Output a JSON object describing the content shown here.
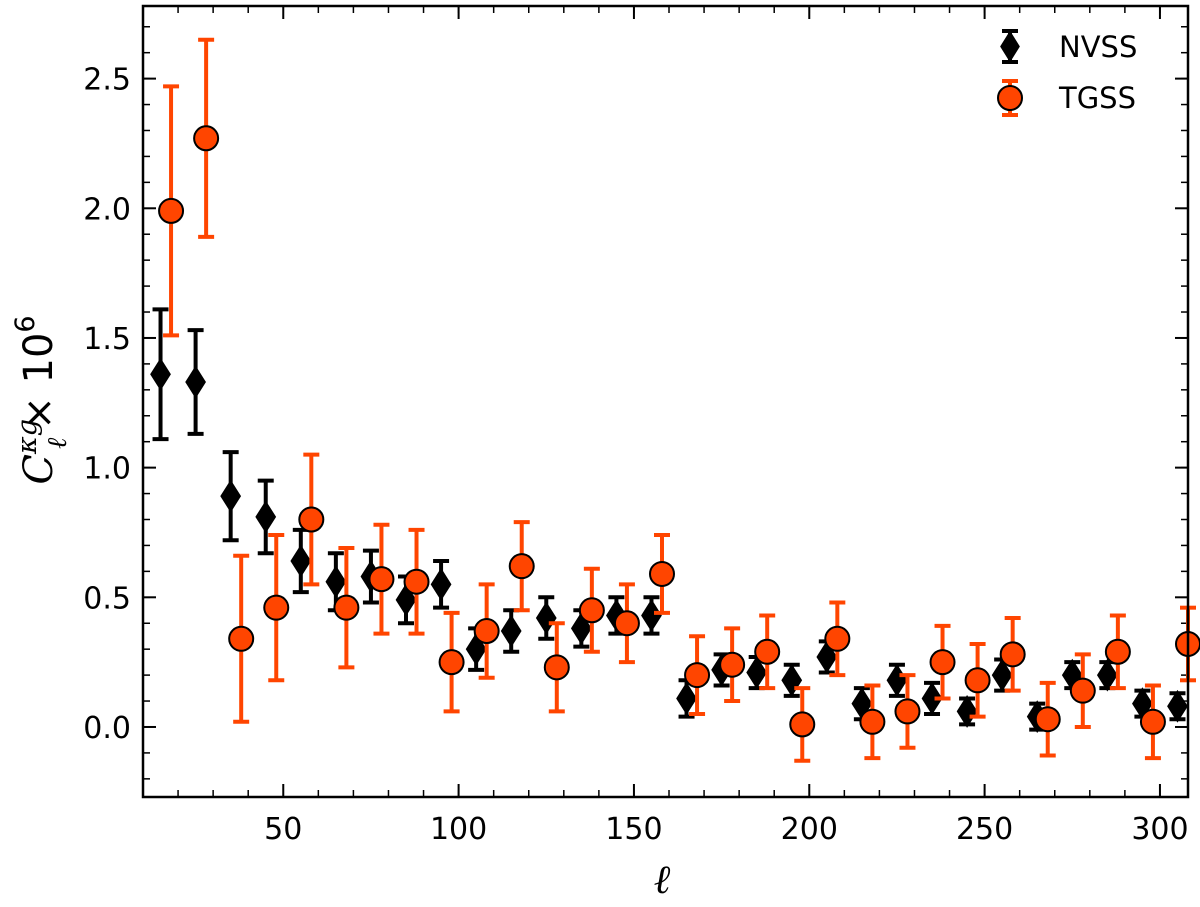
{
  "chart_data": {
    "type": "scatter",
    "xlabel": "ℓ",
    "ylabel": {
      "base": "C",
      "sub": "ℓ",
      "sup": "κg",
      "suffix": "× 10",
      "exp": "6"
    },
    "xlim": [
      10,
      308
    ],
    "ylim": [
      -0.27,
      2.78
    ],
    "xticks": [
      50,
      100,
      150,
      200,
      250,
      300
    ],
    "xtick_labels": [
      "50",
      "100",
      "150",
      "200",
      "250",
      "300"
    ],
    "yticks": [
      0.0,
      0.5,
      1.0,
      1.5,
      2.0,
      2.5
    ],
    "ytick_labels": [
      "0.0",
      "0.5",
      "1.0",
      "1.5",
      "2.0",
      "2.5"
    ],
    "grid": false,
    "legend_position": "top-right",
    "series": [
      {
        "name": "NVSS",
        "marker": "diamond",
        "color": "#000000",
        "x": [
          15,
          25,
          35,
          45,
          55,
          65,
          75,
          85,
          95,
          105,
          115,
          125,
          135,
          145,
          155,
          165,
          175,
          185,
          195,
          205,
          215,
          225,
          235,
          245,
          255,
          265,
          275,
          285,
          295,
          305
        ],
        "y": [
          1.36,
          1.33,
          0.89,
          0.81,
          0.64,
          0.56,
          0.58,
          0.49,
          0.55,
          0.3,
          0.37,
          0.42,
          0.38,
          0.43,
          0.43,
          0.11,
          0.22,
          0.21,
          0.18,
          0.27,
          0.09,
          0.18,
          0.11,
          0.06,
          0.2,
          0.04,
          0.2,
          0.2,
          0.09,
          0.08
        ],
        "yerr": [
          0.25,
          0.2,
          0.17,
          0.14,
          0.12,
          0.11,
          0.1,
          0.09,
          0.09,
          0.08,
          0.08,
          0.08,
          0.07,
          0.07,
          0.07,
          0.07,
          0.06,
          0.06,
          0.06,
          0.06,
          0.06,
          0.06,
          0.06,
          0.05,
          0.06,
          0.05,
          0.05,
          0.05,
          0.05,
          0.05
        ]
      },
      {
        "name": "TGSS",
        "marker": "circle",
        "color": "#ff4500",
        "x": [
          18,
          28,
          38,
          48,
          58,
          68,
          78,
          88,
          98,
          108,
          118,
          128,
          138,
          148,
          158,
          168,
          178,
          188,
          198,
          208,
          218,
          228,
          238,
          248,
          258,
          268,
          278,
          288,
          298,
          308
        ],
        "y": [
          1.99,
          2.27,
          0.34,
          0.46,
          0.8,
          0.46,
          0.57,
          0.56,
          0.25,
          0.37,
          0.62,
          0.23,
          0.45,
          0.4,
          0.59,
          0.2,
          0.24,
          0.29,
          0.01,
          0.34,
          0.02,
          0.06,
          0.25,
          0.18,
          0.28,
          0.03,
          0.14,
          0.29,
          0.02,
          0.32
        ]
      }
    ],
    "tgss_err_low": [
      0.48,
      0.38,
      0.32,
      0.28,
      0.25,
      0.23,
      0.21,
      0.2,
      0.19,
      0.18,
      0.17,
      0.17,
      0.16,
      0.15,
      0.15,
      0.15,
      0.14,
      0.14,
      0.14,
      0.14,
      0.14,
      0.14,
      0.14,
      0.14,
      0.14,
      0.14,
      0.14,
      0.14,
      0.14,
      0.14
    ],
    "tgss_err_high": [
      0.48,
      0.38,
      0.32,
      0.28,
      0.25,
      0.23,
      0.21,
      0.2,
      0.19,
      0.18,
      0.17,
      0.17,
      0.16,
      0.15,
      0.15,
      0.15,
      0.14,
      0.14,
      0.14,
      0.14,
      0.14,
      0.14,
      0.14,
      0.14,
      0.14,
      0.14,
      0.14,
      0.14,
      0.14,
      0.14
    ]
  }
}
